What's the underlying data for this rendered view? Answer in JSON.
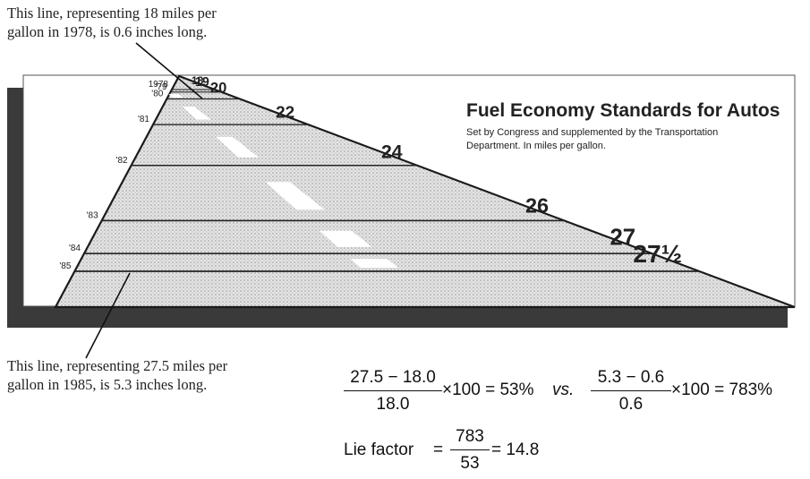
{
  "chart_data": {
    "type": "bar",
    "title": "Fuel Economy Standards for Autos",
    "subtitle_lines": [
      "Set by Congress and supplemented by the Transportation",
      "Department. In miles per gallon."
    ],
    "categories": [
      "1978",
      "'79",
      "'80",
      "'81",
      "'82",
      "'83",
      "'84",
      "'85"
    ],
    "values": [
      18,
      19,
      20,
      22,
      24,
      26,
      27,
      27.5
    ],
    "value_labels": [
      "18",
      "19",
      "20",
      "22",
      "24",
      "26",
      "27",
      "27½"
    ],
    "line_lengths_inches": [
      0.6,
      null,
      null,
      null,
      null,
      null,
      null,
      5.3
    ]
  },
  "annotations": {
    "top_line1": "This line, representing 18 miles per",
    "top_line2": "gallon in 1978, is 0.6 inches long.",
    "bottom_line1": "This line, representing 27.5 miles per",
    "bottom_line2": "gallon in 1985, is 5.3 inches long."
  },
  "formula": {
    "f1_num": "27.5 − 18.0",
    "f1_den": "18.0",
    "f1_rest": "×100 = 53%",
    "vs": "vs.",
    "f2_num": "5.3 − 0.6",
    "f2_den": "0.6",
    "f2_rest": "×100 = 783%",
    "lie_label": "Lie factor",
    "lie_eq": "=",
    "lf_num": "783",
    "lf_den": "53",
    "lf_rest": "= 14.8"
  }
}
